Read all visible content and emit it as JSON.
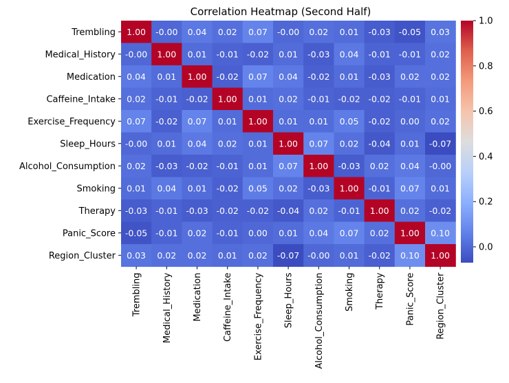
{
  "chart_data": {
    "type": "heatmap",
    "title": "Correlation Heatmap (Second Half)",
    "xlabel": "",
    "ylabel": "",
    "labels": [
      "Trembling",
      "Medical_History",
      "Medication",
      "Caffeine_Intake",
      "Exercise_Frequency",
      "Sleep_Hours",
      "Alcohol_Consumption",
      "Smoking",
      "Therapy",
      "Panic_Score",
      "Region_Cluster"
    ],
    "matrix": [
      [
        1.0,
        -0.0,
        0.04,
        0.02,
        0.07,
        -0.0,
        0.02,
        0.01,
        -0.03,
        -0.05,
        0.03
      ],
      [
        -0.0,
        1.0,
        0.01,
        -0.01,
        -0.02,
        0.01,
        -0.03,
        0.04,
        -0.01,
        -0.01,
        0.02
      ],
      [
        0.04,
        0.01,
        1.0,
        -0.02,
        0.07,
        0.04,
        -0.02,
        0.01,
        -0.03,
        0.02,
        0.02
      ],
      [
        0.02,
        -0.01,
        -0.02,
        1.0,
        0.01,
        0.02,
        -0.01,
        -0.02,
        -0.02,
        -0.01,
        0.01
      ],
      [
        0.07,
        -0.02,
        0.07,
        0.01,
        1.0,
        0.01,
        0.01,
        0.05,
        -0.02,
        0.0,
        0.02
      ],
      [
        -0.0,
        0.01,
        0.04,
        0.02,
        0.01,
        1.0,
        0.07,
        0.02,
        -0.04,
        0.01,
        -0.07
      ],
      [
        0.02,
        -0.03,
        -0.02,
        -0.01,
        0.01,
        0.07,
        1.0,
        -0.03,
        0.02,
        0.04,
        -0.0
      ],
      [
        0.01,
        0.04,
        0.01,
        -0.02,
        0.05,
        0.02,
        -0.03,
        1.0,
        -0.01,
        0.07,
        0.01
      ],
      [
        -0.03,
        -0.01,
        -0.03,
        -0.02,
        -0.02,
        -0.04,
        0.02,
        -0.01,
        1.0,
        0.02,
        -0.02
      ],
      [
        -0.05,
        -0.01,
        0.02,
        -0.01,
        0.0,
        0.01,
        0.04,
        0.07,
        0.02,
        1.0,
        0.1
      ],
      [
        0.03,
        0.02,
        0.02,
        0.01,
        0.02,
        -0.07,
        -0.0,
        0.01,
        -0.02,
        0.1,
        1.0
      ]
    ],
    "annotations": [
      [
        "1.00",
        "-0.00",
        "0.04",
        "0.02",
        "0.07",
        "-0.00",
        "0.02",
        "0.01",
        "-0.03",
        "-0.05",
        "0.03"
      ],
      [
        "-0.00",
        "1.00",
        "0.01",
        "-0.01",
        "-0.02",
        "0.01",
        "-0.03",
        "0.04",
        "-0.01",
        "-0.01",
        "0.02"
      ],
      [
        "0.04",
        "0.01",
        "1.00",
        "-0.02",
        "0.07",
        "0.04",
        "-0.02",
        "0.01",
        "-0.03",
        "0.02",
        "0.02"
      ],
      [
        "0.02",
        "-0.01",
        "-0.02",
        "1.00",
        "0.01",
        "0.02",
        "-0.01",
        "-0.02",
        "-0.02",
        "-0.01",
        "0.01"
      ],
      [
        "0.07",
        "-0.02",
        "0.07",
        "0.01",
        "1.00",
        "0.01",
        "0.01",
        "0.05",
        "-0.02",
        "0.00",
        "0.02"
      ],
      [
        "-0.00",
        "0.01",
        "0.04",
        "0.02",
        "0.01",
        "1.00",
        "0.07",
        "0.02",
        "-0.04",
        "0.01",
        "-0.07"
      ],
      [
        "0.02",
        "-0.03",
        "-0.02",
        "-0.01",
        "0.01",
        "0.07",
        "1.00",
        "-0.03",
        "0.02",
        "0.04",
        "-0.00"
      ],
      [
        "0.01",
        "0.04",
        "0.01",
        "-0.02",
        "0.05",
        "0.02",
        "-0.03",
        "1.00",
        "-0.01",
        "0.07",
        "0.01"
      ],
      [
        "-0.03",
        "-0.01",
        "-0.03",
        "-0.02",
        "-0.02",
        "-0.04",
        "0.02",
        "-0.01",
        "1.00",
        "0.02",
        "-0.02"
      ],
      [
        "-0.05",
        "-0.01",
        "0.02",
        "-0.01",
        "0.00",
        "0.01",
        "0.04",
        "0.07",
        "0.02",
        "1.00",
        "0.10"
      ],
      [
        "0.03",
        "0.02",
        "0.02",
        "0.01",
        "0.02",
        "-0.07",
        "-0.00",
        "0.01",
        "-0.02",
        "0.10",
        "1.00"
      ]
    ],
    "colormap": "coolwarm",
    "vmin": -0.07,
    "vmax": 1.0,
    "colorbar_ticks": [
      0.0,
      0.2,
      0.4,
      0.6,
      0.8,
      1.0
    ],
    "colorbar_tick_labels": [
      "0.0",
      "0.2",
      "0.4",
      "0.6",
      "0.8",
      "1.0"
    ],
    "grid": false,
    "legend": "colorbar-right"
  }
}
